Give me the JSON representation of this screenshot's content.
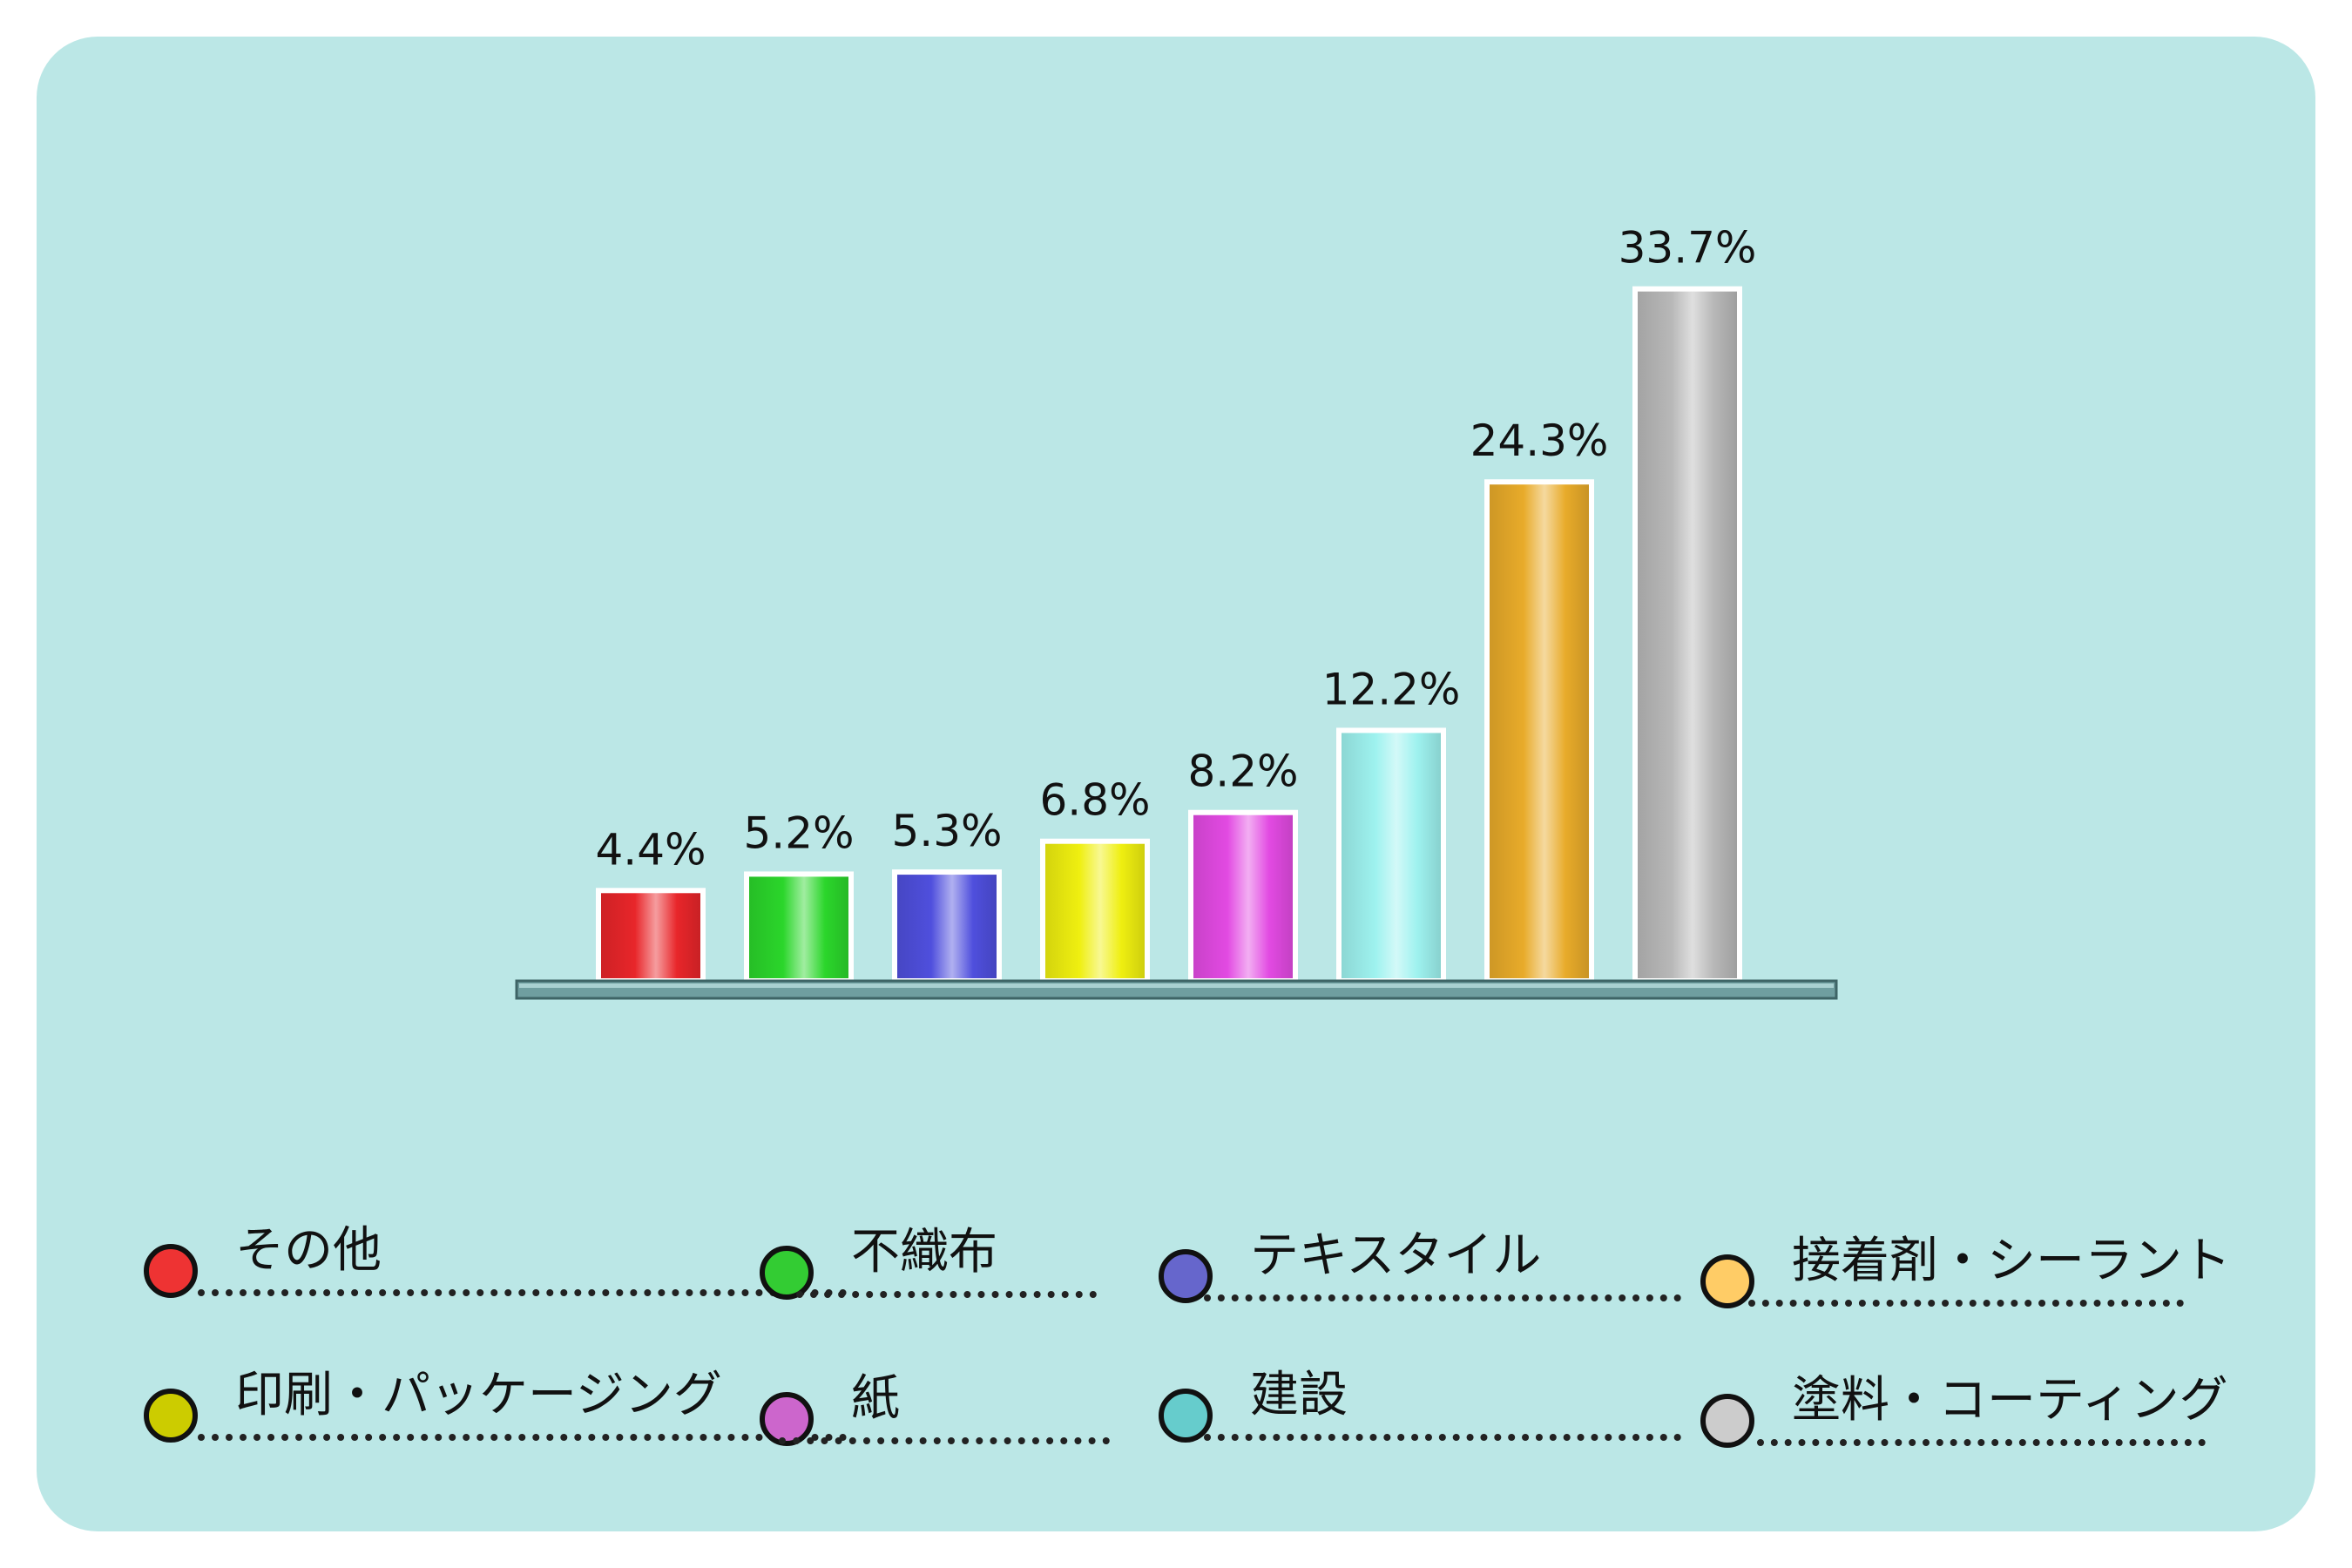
{
  "chart_data": {
    "type": "bar",
    "categories": [
      "その他",
      "不織布",
      "テキスタイル",
      "印刷・パッケージング",
      "紙",
      "建設",
      "接着剤・シーラント",
      "塗料・コーティング"
    ],
    "values": [
      4.4,
      5.2,
      5.3,
      6.8,
      8.2,
      12.2,
      24.3,
      33.7
    ],
    "value_labels": [
      "4.4%",
      "5.2%",
      "5.3%",
      "6.8%",
      "8.2%",
      "12.2%",
      "24.3%",
      "33.7%"
    ],
    "unit": "%",
    "colors": [
      "#e8262a",
      "#2bd62b",
      "#4f4fdd",
      "#efef10",
      "#e24ae2",
      "#9ef2ef",
      "#e8ab2a",
      "#b8b8b8"
    ],
    "ylim": [
      0,
      35
    ],
    "legend": [
      {
        "label": "その他",
        "color": "#ee3333"
      },
      {
        "label": "不織布",
        "color": "#33cc33"
      },
      {
        "label": "テキスタイル",
        "color": "#6666cc"
      },
      {
        "label": "接着剤・シーラント",
        "color": "#ffcc66"
      },
      {
        "label": "印刷・パッケージング",
        "color": "#cccc00"
      },
      {
        "label": "紙",
        "color": "#cc66cc"
      },
      {
        "label": "建設",
        "color": "#66cccc"
      },
      {
        "label": "塗料・コーティング",
        "color": "#cccccc"
      }
    ]
  }
}
